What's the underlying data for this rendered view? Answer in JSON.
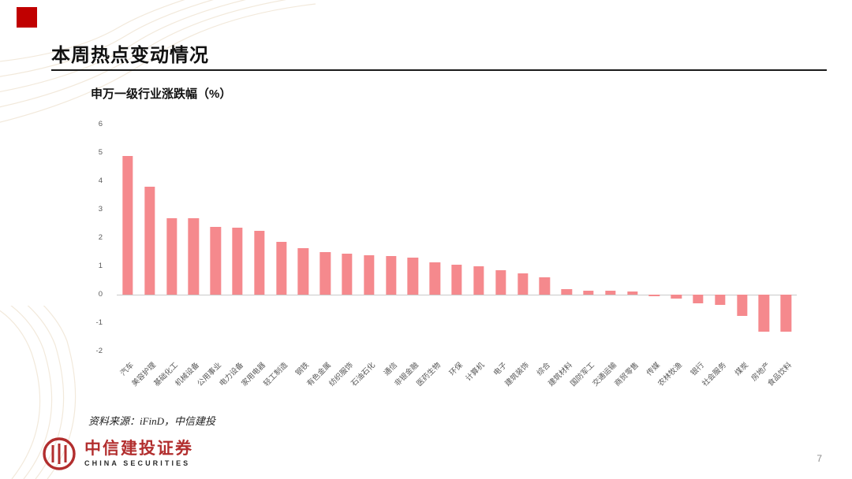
{
  "slide": {
    "title": "本周热点变动情况",
    "page_number": "7",
    "source": "资料来源：iFinD，中信建投",
    "logo": {
      "cn": "中信建投证券",
      "en": "CHINA SECURITIES"
    }
  },
  "chart_data": {
    "type": "bar",
    "title": "申万一级行业涨跌幅（%）",
    "categories": [
      "汽车",
      "美容护理",
      "基础化工",
      "机械设备",
      "公用事业",
      "电力设备",
      "家用电器",
      "轻工制造",
      "钢铁",
      "有色金属",
      "纺织服饰",
      "石油石化",
      "通信",
      "非银金融",
      "医药生物",
      "环保",
      "计算机",
      "电子",
      "建筑装饰",
      "综合",
      "建筑材料",
      "国防军工",
      "交通运输",
      "商贸零售",
      "传媒",
      "农林牧渔",
      "银行",
      "社会服务",
      "煤炭",
      "房地产",
      "食品饮料"
    ],
    "values": [
      4.9,
      3.8,
      2.7,
      2.7,
      2.4,
      2.35,
      2.25,
      1.85,
      1.65,
      1.5,
      1.45,
      1.4,
      1.35,
      1.3,
      1.15,
      1.05,
      1.0,
      0.85,
      0.75,
      0.6,
      0.2,
      0.15,
      0.15,
      0.1,
      -0.05,
      -0.15,
      -0.3,
      -0.35,
      -0.75,
      -1.3,
      -1.3
    ],
    "ylim": [
      -2,
      6
    ],
    "yticks": [
      6,
      5,
      4,
      3,
      2,
      1,
      0,
      -1,
      -2
    ],
    "xlabel": "",
    "ylabel": "",
    "grid": false,
    "legend": false,
    "bar_color": "#F5898D"
  },
  "colors": {
    "accent_square": "#C00000",
    "brand_red": "#B22E2E",
    "bar": "#F5898D",
    "axis_text": "#595959"
  }
}
